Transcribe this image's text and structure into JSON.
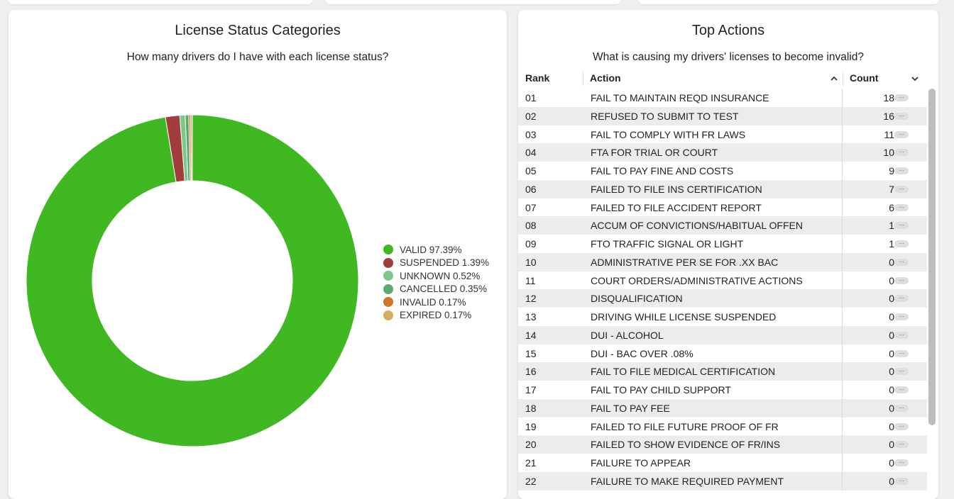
{
  "left_card": {
    "title": "License Status Categories",
    "subtitle": "How many drivers do I have with each license status?"
  },
  "chart_data": {
    "type": "pie",
    "donut": true,
    "title": "License Status Categories",
    "subtitle": "How many drivers do I have with each license status?",
    "categories": [
      "VALID",
      "SUSPENDED",
      "UNKNOWN",
      "CANCELLED",
      "INVALID",
      "EXPIRED"
    ],
    "values": [
      97.39,
      1.39,
      0.52,
      0.35,
      0.17,
      0.17
    ],
    "colors": [
      "#3fb822",
      "#a23d3d",
      "#7bc88a",
      "#5aaa6e",
      "#d2742b",
      "#d9ac5e"
    ],
    "legend_position": "right"
  },
  "legend": [
    {
      "label": "VALID 97.39%",
      "color": "#3fb822"
    },
    {
      "label": "SUSPENDED 1.39%",
      "color": "#a23d3d"
    },
    {
      "label": "UNKNOWN 0.52%",
      "color": "#7bc88a"
    },
    {
      "label": "CANCELLED 0.35%",
      "color": "#5aaa6e"
    },
    {
      "label": "INVALID 0.17%",
      "color": "#d2742b"
    },
    {
      "label": "EXPIRED 0.17%",
      "color": "#d9ac5e"
    }
  ],
  "right_card": {
    "title": "Top Actions",
    "subtitle": "What is causing my drivers' licenses to become invalid?",
    "columns": {
      "rank": "Rank",
      "action": "Action",
      "count": "Count"
    },
    "more_glyph": "···",
    "rows": [
      {
        "rank": "01",
        "action": "FAIL TO MAINTAIN REQD INSURANCE",
        "count": "18"
      },
      {
        "rank": "02",
        "action": "REFUSED TO SUBMIT TO TEST",
        "count": "16"
      },
      {
        "rank": "03",
        "action": "FAIL TO COMPLY WITH FR LAWS",
        "count": "11"
      },
      {
        "rank": "04",
        "action": "FTA FOR TRIAL OR COURT",
        "count": "10"
      },
      {
        "rank": "05",
        "action": "FAIL TO PAY FINE AND COSTS",
        "count": "9"
      },
      {
        "rank": "06",
        "action": "FAILED TO FILE INS CERTIFICATION",
        "count": "7"
      },
      {
        "rank": "07",
        "action": "FAILED TO FILE ACCIDENT REPORT",
        "count": "6"
      },
      {
        "rank": "08",
        "action": "ACCUM OF CONVICTIONS/HABITUAL OFFEN",
        "count": "1"
      },
      {
        "rank": "09",
        "action": "FTO TRAFFIC SIGNAL OR LIGHT",
        "count": "1"
      },
      {
        "rank": "10",
        "action": "ADMINISTRATIVE PER SE FOR .XX BAC",
        "count": "0"
      },
      {
        "rank": "11",
        "action": "COURT ORDERS/ADMINISTRATIVE ACTIONS",
        "count": "0"
      },
      {
        "rank": "12",
        "action": "DISQUALIFICATION",
        "count": "0"
      },
      {
        "rank": "13",
        "action": "DRIVING WHILE LICENSE SUSPENDED",
        "count": "0"
      },
      {
        "rank": "14",
        "action": "DUI - ALCOHOL",
        "count": "0"
      },
      {
        "rank": "15",
        "action": "DUI - BAC OVER .08%",
        "count": "0"
      },
      {
        "rank": "16",
        "action": "FAIL TO FILE MEDICAL CERTIFICATION",
        "count": "0"
      },
      {
        "rank": "17",
        "action": "FAIL TO PAY CHILD SUPPORT",
        "count": "0"
      },
      {
        "rank": "18",
        "action": "FAIL TO PAY FEE",
        "count": "0"
      },
      {
        "rank": "19",
        "action": "FAILED TO FILE FUTURE PROOF OF FR",
        "count": "0"
      },
      {
        "rank": "20",
        "action": "FAILED TO SHOW EVIDENCE OF FR/INS",
        "count": "0"
      },
      {
        "rank": "21",
        "action": "FAILURE TO APPEAR",
        "count": "0"
      },
      {
        "rank": "22",
        "action": "FAILURE TO MAKE REQUIRED PAYMENT",
        "count": "0"
      }
    ]
  },
  "icons": {
    "action_sort": "chevron-up-icon",
    "count_sort": "chevron-down-icon",
    "row_menu": "more-icon"
  }
}
